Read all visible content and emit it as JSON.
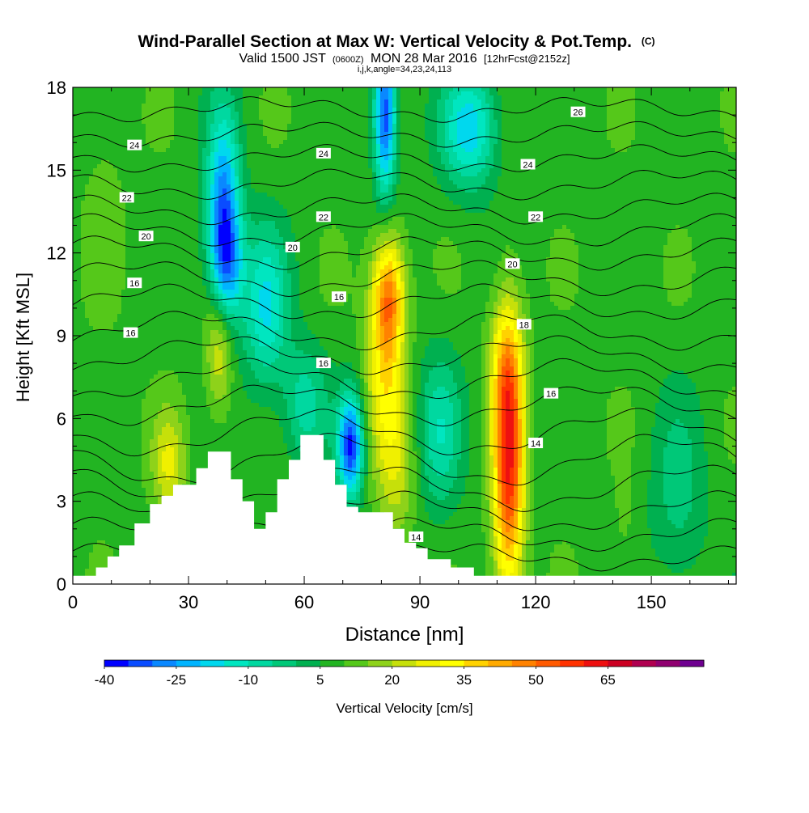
{
  "header": {
    "title": "Wind-Parallel Section at Max W: Vertical Velocity & Pot.Temp.",
    "title_mark": "(C)",
    "subtitle_a": "Valid 1500 JST",
    "subtitle_b": "(0600Z)",
    "subtitle_c": "MON 28 Mar 2016",
    "subtitle_d": "[12hrFcst@2152z]",
    "subtitle_params": "i,j,k,angle=34,23,24,113"
  },
  "chart_data": {
    "type": "heatmap",
    "xlabel": "Distance [nm]",
    "ylabel": "Height [Kft MSL]",
    "xlim": [
      0,
      172
    ],
    "ylim": [
      0,
      18
    ],
    "x_ticks": [
      0,
      30,
      60,
      90,
      120,
      150
    ],
    "y_ticks": [
      0,
      3,
      6,
      9,
      12,
      15,
      18
    ],
    "background_value": 8,
    "velocity_features": [
      {
        "x": 25,
        "y": 4.3,
        "sx": 3,
        "sy": 1.4,
        "value": 25
      },
      {
        "x": 38,
        "y": 8.7,
        "sx": 2.5,
        "sy": 1.8,
        "value": 28
      },
      {
        "x": 39,
        "y": 13.5,
        "sx": 3,
        "sy": 2.5,
        "value": -28
      },
      {
        "x": 40,
        "y": 11.5,
        "sx": 3,
        "sy": 1.5,
        "value": -15
      },
      {
        "x": 50,
        "y": 10,
        "sx": 4,
        "sy": 2,
        "value": -15
      },
      {
        "x": 72,
        "y": 5,
        "sx": 2.3,
        "sy": 1.3,
        "value": -35
      },
      {
        "x": 82,
        "y": 10.5,
        "sx": 2.8,
        "sy": 1.5,
        "value": 40
      },
      {
        "x": 81,
        "y": 8,
        "sx": 3.5,
        "sy": 2.5,
        "value": 30
      },
      {
        "x": 84,
        "y": 4,
        "sx": 3.5,
        "sy": 2,
        "value": 20
      },
      {
        "x": 81,
        "y": 17,
        "sx": 2,
        "sy": 2,
        "value": -35
      },
      {
        "x": 113,
        "y": 4.5,
        "sx": 2.8,
        "sy": 3.5,
        "value": 60
      },
      {
        "x": 112,
        "y": 8,
        "sx": 3,
        "sy": 1.5,
        "value": 20
      },
      {
        "x": 103,
        "y": 16.5,
        "sx": 5,
        "sy": 1.5,
        "value": -18
      },
      {
        "x": 95,
        "y": 5.5,
        "sx": 4,
        "sy": 2,
        "value": -8
      },
      {
        "x": 60,
        "y": 6.5,
        "sx": 4,
        "sy": 1.5,
        "value": -8
      },
      {
        "x": 157,
        "y": 3,
        "sx": 5,
        "sy": 2.5,
        "value": -2
      },
      {
        "x": 143,
        "y": 2,
        "sx": 2,
        "sy": 1.5,
        "value": 12
      },
      {
        "x": 8,
        "y": 14,
        "sx": 4,
        "sy": 3,
        "value": 12
      }
    ],
    "terrain_steps": [
      [
        0,
        0.3
      ],
      [
        6,
        0.6
      ],
      [
        9,
        1.0
      ],
      [
        12,
        1.4
      ],
      [
        16,
        2.2
      ],
      [
        20,
        2.9
      ],
      [
        23,
        3.2
      ],
      [
        26,
        3.6
      ],
      [
        32,
        4.2
      ],
      [
        35,
        4.8
      ],
      [
        41,
        3.8
      ],
      [
        44,
        3.0
      ],
      [
        47,
        2.0
      ],
      [
        50,
        2.6
      ],
      [
        53,
        3.8
      ],
      [
        56,
        4.5
      ],
      [
        59,
        5.4
      ],
      [
        65,
        4.5
      ],
      [
        68,
        3.6
      ],
      [
        71,
        2.8
      ],
      [
        74,
        2.6
      ],
      [
        83,
        2.0
      ],
      [
        86,
        1.5
      ],
      [
        89,
        1.3
      ],
      [
        92,
        0.9
      ],
      [
        98,
        0.6
      ],
      [
        104,
        0.3
      ],
      [
        172,
        0.3
      ]
    ],
    "potential_temperature": {
      "units": "C",
      "levels": [
        {
          "base": 1.0,
          "amp": 0.35
        },
        {
          "base": 1.8,
          "amp": 0.45
        },
        {
          "base": 2.6,
          "amp": 0.6
        },
        {
          "base": 3.5,
          "amp": 0.7
        },
        {
          "base": 4.5,
          "amp": 0.8
        },
        {
          "base": 5.5,
          "amp": 0.7
        },
        {
          "base": 6.5,
          "amp": 0.6
        },
        {
          "base": 7.4,
          "amp": 0.6
        },
        {
          "base": 8.3,
          "amp": 0.55
        },
        {
          "base": 9.2,
          "amp": 0.55
        },
        {
          "base": 10.2,
          "amp": 0.5
        },
        {
          "base": 11.1,
          "amp": 0.5
        },
        {
          "base": 12.0,
          "amp": 0.45
        },
        {
          "base": 12.8,
          "amp": 0.45
        },
        {
          "base": 13.6,
          "amp": 0.4
        },
        {
          "base": 14.5,
          "amp": 0.4
        },
        {
          "base": 15.4,
          "amp": 0.35
        },
        {
          "base": 16.3,
          "amp": 0.3
        },
        {
          "base": 17.2,
          "amp": 0.3
        }
      ],
      "labels": [
        {
          "text": "24",
          "x": 16,
          "y": 15.9
        },
        {
          "text": "22",
          "x": 14,
          "y": 14.0
        },
        {
          "text": "20",
          "x": 19,
          "y": 12.6
        },
        {
          "text": "16",
          "x": 16,
          "y": 10.9
        },
        {
          "text": "16",
          "x": 15,
          "y": 9.1
        },
        {
          "text": "24",
          "x": 65,
          "y": 15.6
        },
        {
          "text": "22",
          "x": 65,
          "y": 13.3
        },
        {
          "text": "20",
          "x": 57,
          "y": 12.2
        },
        {
          "text": "16",
          "x": 69,
          "y": 10.4
        },
        {
          "text": "16",
          "x": 65,
          "y": 8.0
        },
        {
          "text": "26",
          "x": 131,
          "y": 17.1
        },
        {
          "text": "24",
          "x": 118,
          "y": 15.2
        },
        {
          "text": "22",
          "x": 120,
          "y": 13.3
        },
        {
          "text": "20",
          "x": 114,
          "y": 11.6
        },
        {
          "text": "18",
          "x": 117,
          "y": 9.4
        },
        {
          "text": "16",
          "x": 124,
          "y": 6.9
        },
        {
          "text": "14",
          "x": 120,
          "y": 5.1
        },
        {
          "text": "14",
          "x": 89,
          "y": 1.7
        }
      ]
    },
    "legend": {
      "title": "Vertical Velocity [cm/s]",
      "min": -40,
      "step": 5,
      "tick_labels": [
        "-40",
        "-25",
        "-10",
        "5",
        "20",
        "35",
        "50",
        "65"
      ],
      "colors": [
        "#0000ff",
        "#0a4cff",
        "#0a88ff",
        "#00b4ff",
        "#00d8ee",
        "#00e6c0",
        "#00d8a0",
        "#00c878",
        "#00b050",
        "#22b422",
        "#55c81a",
        "#8ed21a",
        "#c6e00a",
        "#f0f000",
        "#ffff00",
        "#ffd200",
        "#ffaa00",
        "#ff8200",
        "#ff5a00",
        "#ff3200",
        "#ee1010",
        "#cc0022",
        "#b00050",
        "#900070",
        "#6e0090"
      ]
    }
  }
}
